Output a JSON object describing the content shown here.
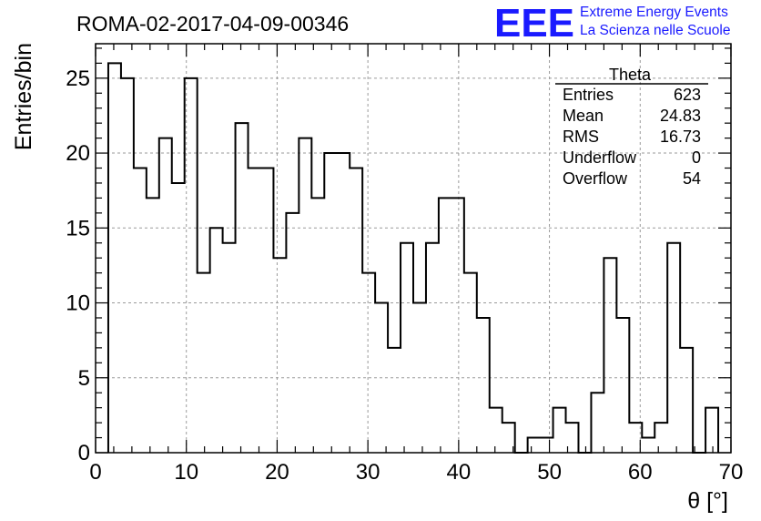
{
  "chart_data": {
    "type": "bar",
    "title": "ROMA-02-2017-04-09-00346",
    "xlabel": "θ [°]",
    "ylabel": "Entries/bin",
    "xlim": [
      0,
      70
    ],
    "ylim": [
      0,
      27.3
    ],
    "bin_width": 1.4,
    "bin_edges_start": 1.4,
    "x_ticks": [
      "0",
      "10",
      "20",
      "30",
      "40",
      "50",
      "60",
      "70"
    ],
    "y_ticks": [
      "0",
      "5",
      "10",
      "15",
      "20",
      "25"
    ],
    "grid": true,
    "values": [
      26,
      25,
      19,
      17,
      21,
      18,
      25,
      12,
      15,
      14,
      22,
      19,
      19,
      13,
      16,
      21,
      17,
      20,
      20,
      19,
      12,
      10,
      7,
      14,
      10,
      14,
      17,
      17,
      12,
      9,
      3,
      2,
      0,
      1,
      1,
      3,
      2,
      0,
      4,
      13,
      9,
      2,
      1,
      2,
      14,
      7,
      0,
      3
    ],
    "stats": {
      "name": "Theta",
      "rows": [
        {
          "label": "Entries",
          "value": "623"
        },
        {
          "label": "Mean",
          "value": "24.83"
        },
        {
          "label": "RMS",
          "value": "16.73"
        },
        {
          "label": "Underflow",
          "value": "0"
        },
        {
          "label": "Overflow",
          "value": "54"
        }
      ]
    }
  },
  "logo": {
    "mark": "EEE",
    "line1": "Extreme Energy Events",
    "line2": "La Scienza nelle Scuole",
    "color": "#1a1aff"
  }
}
